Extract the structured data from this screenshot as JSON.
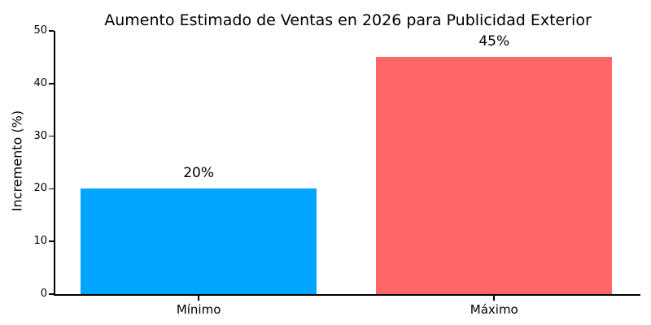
{
  "chart_data": {
    "type": "bar",
    "title": "Aumento Estimado de Ventas en 2026 para Publicidad Exterior",
    "categories": [
      "Mínimo",
      "Máximo"
    ],
    "values": [
      20,
      45
    ],
    "bar_value_labels": [
      "20%",
      "45%"
    ],
    "bar_colors": [
      "#00A5FF",
      "#FF6666"
    ],
    "xlabel": "",
    "ylabel": "Incremento (%)",
    "ylim": [
      0,
      50
    ],
    "yticks": [
      0,
      10,
      20,
      30,
      40,
      50
    ],
    "grid": false,
    "legend": "none",
    "spine_color": "#000000",
    "text_color": "#000000",
    "background_color": "#ffffff"
  }
}
